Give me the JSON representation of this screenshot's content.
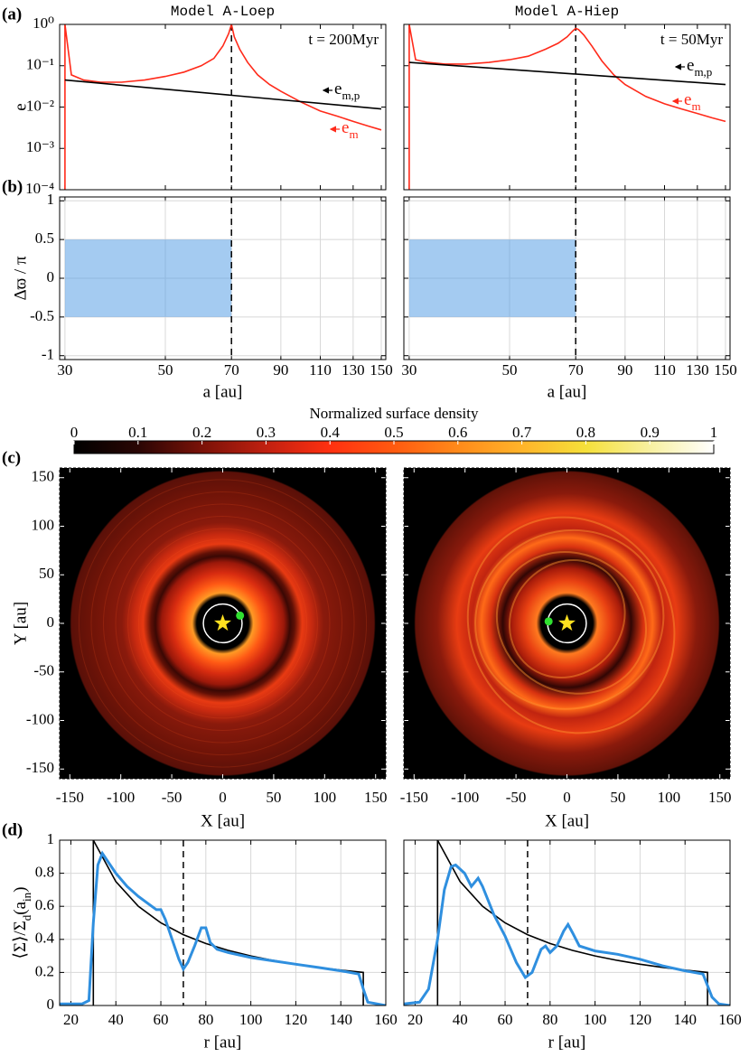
{
  "chart_data": [
    {
      "type": "line",
      "panel_label": "(a)",
      "title": "Model A-Loep",
      "annotation": "t = 200Myr",
      "ylabel": "e",
      "xlog": true,
      "ylog": true,
      "xlim": [
        29.2,
        153.5
      ],
      "ylim": [
        0.0001,
        1
      ],
      "xticks": [
        30,
        50,
        70,
        90,
        110,
        130,
        150
      ],
      "show_xtick_labels": false,
      "yticks": [
        {
          "value": 0.0001,
          "label": "10⁻⁴"
        },
        {
          "value": 0.001,
          "label": "10⁻³"
        },
        {
          "value": 0.01,
          "label": "10⁻²"
        },
        {
          "value": 0.1,
          "label": "10⁻¹"
        },
        {
          "value": 1,
          "label": "10⁰"
        }
      ],
      "grid": false,
      "vline": 70,
      "series": [
        {
          "color": "#ff2a1a",
          "label": "e",
          "label_sub": "m",
          "x": [
            30,
            30,
            31,
            33,
            36,
            40,
            45,
            50,
            55,
            60,
            64,
            67,
            69,
            70,
            71,
            73,
            76,
            80,
            85,
            90,
            100,
            110,
            120,
            130,
            140,
            150
          ],
          "values": [
            0.0001,
            1,
            0.06,
            0.045,
            0.04,
            0.04,
            0.045,
            0.055,
            0.07,
            0.1,
            0.15,
            0.3,
            0.6,
            1,
            0.5,
            0.25,
            0.12,
            0.06,
            0.035,
            0.024,
            0.013,
            0.008,
            0.006,
            0.0045,
            0.0035,
            0.0028
          ]
        },
        {
          "color": "#000000",
          "label": "e",
          "label_sub": "m,p",
          "x": [
            30,
            150
          ],
          "values": [
            0.045,
            0.009
          ]
        }
      ]
    },
    {
      "type": "line",
      "title": "Model A-Hiep",
      "annotation": "t = 50Myr",
      "xlog": true,
      "ylog": true,
      "xlim": [
        29.2,
        153.5
      ],
      "ylim": [
        0.0001,
        1
      ],
      "xticks": [
        30,
        50,
        70,
        90,
        110,
        130,
        150
      ],
      "show_xtick_labels": false,
      "yticks": [
        0.0001,
        0.001,
        0.01,
        0.1,
        1
      ],
      "show_ytick_labels": false,
      "grid": false,
      "vline": 70,
      "series": [
        {
          "color": "#ff2a1a",
          "label": "e",
          "label_sub": "m",
          "x": [
            30,
            30,
            31,
            33,
            36,
            40,
            45,
            50,
            55,
            60,
            64,
            67,
            69,
            70,
            71,
            73,
            76,
            80,
            85,
            90,
            100,
            110,
            120,
            130,
            140,
            150
          ],
          "values": [
            0.0001,
            1,
            0.14,
            0.12,
            0.11,
            0.11,
            0.12,
            0.14,
            0.17,
            0.25,
            0.35,
            0.5,
            0.7,
            0.8,
            0.75,
            0.55,
            0.3,
            0.13,
            0.06,
            0.035,
            0.018,
            0.012,
            0.009,
            0.007,
            0.0055,
            0.0045
          ]
        },
        {
          "color": "#000000",
          "label": "e",
          "label_sub": "m,p",
          "x": [
            30,
            150
          ],
          "values": [
            0.12,
            0.035
          ]
        }
      ]
    },
    {
      "type": "line",
      "panel_label": "(b)",
      "ylabel": "Δϖ / π",
      "xlabel": "a [au]",
      "xlog": true,
      "xlim": [
        29.2,
        153.5
      ],
      "ylim": [
        -1.05,
        1.05
      ],
      "xticks": [
        30,
        50,
        70,
        90,
        110,
        130,
        150
      ],
      "yticks": [
        -1,
        -0.5,
        0,
        0.5,
        1
      ],
      "grid": true,
      "vline": 70,
      "region": {
        "x": [
          30,
          70
        ],
        "y": [
          -0.5,
          0.5
        ]
      },
      "series": []
    },
    {
      "type": "line",
      "xlabel": "a [au]",
      "xlog": true,
      "xlim": [
        29.2,
        153.5
      ],
      "ylim": [
        -1.05,
        1.05
      ],
      "xticks": [
        30,
        50,
        70,
        90,
        110,
        130,
        150
      ],
      "yticks": [
        -1,
        -0.5,
        0,
        0.5,
        1
      ],
      "show_ytick_labels": false,
      "grid": true,
      "vline": 70,
      "region": {
        "x": [
          30,
          70
        ],
        "y": [
          -0.5,
          0.5
        ]
      },
      "series": []
    },
    {
      "type": "colorbar",
      "title": "Normalized surface density",
      "xlim": [
        0,
        1
      ],
      "xticks": [
        0,
        0.1,
        0.2,
        0.3,
        0.4,
        0.5,
        0.6,
        0.7,
        0.8,
        0.9,
        1
      ]
    },
    {
      "type": "image",
      "panel_label": "(c)",
      "xlabel": "X [au]",
      "ylabel": "Y [au]",
      "xlim": [
        -160,
        160
      ],
      "ylim": [
        -160,
        160
      ],
      "xticks": [
        -150,
        -100,
        -50,
        0,
        50,
        100,
        150
      ],
      "yticks": [
        -150,
        -100,
        -50,
        0,
        50,
        100,
        150
      ],
      "star": [
        0,
        0
      ],
      "planet": [
        17,
        8
      ],
      "orbit_radius": 19
    },
    {
      "type": "image",
      "xlabel": "X [au]",
      "xlim": [
        -160,
        160
      ],
      "ylim": [
        -160,
        160
      ],
      "xticks": [
        -150,
        -100,
        -50,
        0,
        50,
        100,
        150
      ],
      "yticks": [
        -150,
        -100,
        -50,
        0,
        50,
        100,
        150
      ],
      "show_ytick_labels": false,
      "star": [
        0,
        0
      ],
      "planet": [
        -18,
        2
      ],
      "orbit_radius": 19
    },
    {
      "type": "line",
      "panel_label": "(d)",
      "xlabel": "r [au]",
      "ylabel": [
        "⟨Σ⟩/Σ",
        "d",
        "(a",
        "in",
        ")"
      ],
      "xlim": [
        15,
        160
      ],
      "ylim": [
        0,
        1
      ],
      "xticks": [
        20,
        40,
        60,
        80,
        100,
        120,
        140,
        160
      ],
      "yticks": [
        0,
        0.2,
        0.4,
        0.6,
        0.8,
        1
      ],
      "grid": true,
      "vline": 70,
      "series": [
        {
          "color": "#000000",
          "x": [
            30,
            30,
            40,
            50,
            60,
            70,
            80,
            90,
            100,
            110,
            120,
            130,
            140,
            150,
            150
          ],
          "values": [
            0,
            1,
            0.75,
            0.6,
            0.5,
            0.4286,
            0.375,
            0.3333,
            0.3,
            0.2727,
            0.25,
            0.2308,
            0.2143,
            0.2,
            0
          ]
        },
        {
          "color": "#2f8fdf",
          "x": [
            15,
            25,
            28,
            30,
            32,
            34,
            36,
            40,
            45,
            50,
            55,
            58,
            60,
            62,
            65,
            68,
            70,
            72,
            75,
            78,
            80,
            82,
            85,
            90,
            100,
            110,
            120,
            130,
            140,
            148,
            150,
            152,
            160
          ],
          "values": [
            0.01,
            0.01,
            0.03,
            0.5,
            0.85,
            0.92,
            0.88,
            0.8,
            0.72,
            0.66,
            0.61,
            0.58,
            0.58,
            0.52,
            0.4,
            0.28,
            0.22,
            0.26,
            0.36,
            0.47,
            0.47,
            0.38,
            0.34,
            0.32,
            0.29,
            0.27,
            0.25,
            0.23,
            0.21,
            0.19,
            0.1,
            0.02,
            0
          ]
        }
      ]
    },
    {
      "type": "line",
      "xlabel": "r [au]",
      "xlim": [
        15,
        160
      ],
      "ylim": [
        0,
        1
      ],
      "xticks": [
        20,
        40,
        60,
        80,
        100,
        120,
        140,
        160
      ],
      "yticks": [
        0,
        0.2,
        0.4,
        0.6,
        0.8,
        1
      ],
      "show_ytick_labels": false,
      "grid": true,
      "vline": 70,
      "series": [
        {
          "color": "#000000",
          "x": [
            30,
            30,
            40,
            50,
            60,
            70,
            80,
            90,
            100,
            110,
            120,
            130,
            140,
            150,
            150
          ],
          "values": [
            0,
            1,
            0.75,
            0.6,
            0.5,
            0.4286,
            0.375,
            0.3333,
            0.3,
            0.2727,
            0.25,
            0.2308,
            0.2143,
            0.2,
            0
          ]
        },
        {
          "color": "#2f8fdf",
          "x": [
            15,
            22,
            26,
            30,
            33,
            36,
            38,
            42,
            45,
            48,
            50,
            55,
            60,
            65,
            69,
            72,
            76,
            78,
            80,
            83,
            86,
            88,
            90,
            93,
            100,
            110,
            120,
            130,
            140,
            148,
            152,
            155,
            160
          ],
          "values": [
            0.01,
            0.02,
            0.1,
            0.4,
            0.7,
            0.84,
            0.85,
            0.8,
            0.72,
            0.77,
            0.72,
            0.55,
            0.42,
            0.26,
            0.17,
            0.2,
            0.34,
            0.36,
            0.32,
            0.36,
            0.45,
            0.49,
            0.44,
            0.36,
            0.33,
            0.31,
            0.28,
            0.24,
            0.21,
            0.19,
            0.05,
            0.01,
            0
          ]
        }
      ]
    }
  ]
}
